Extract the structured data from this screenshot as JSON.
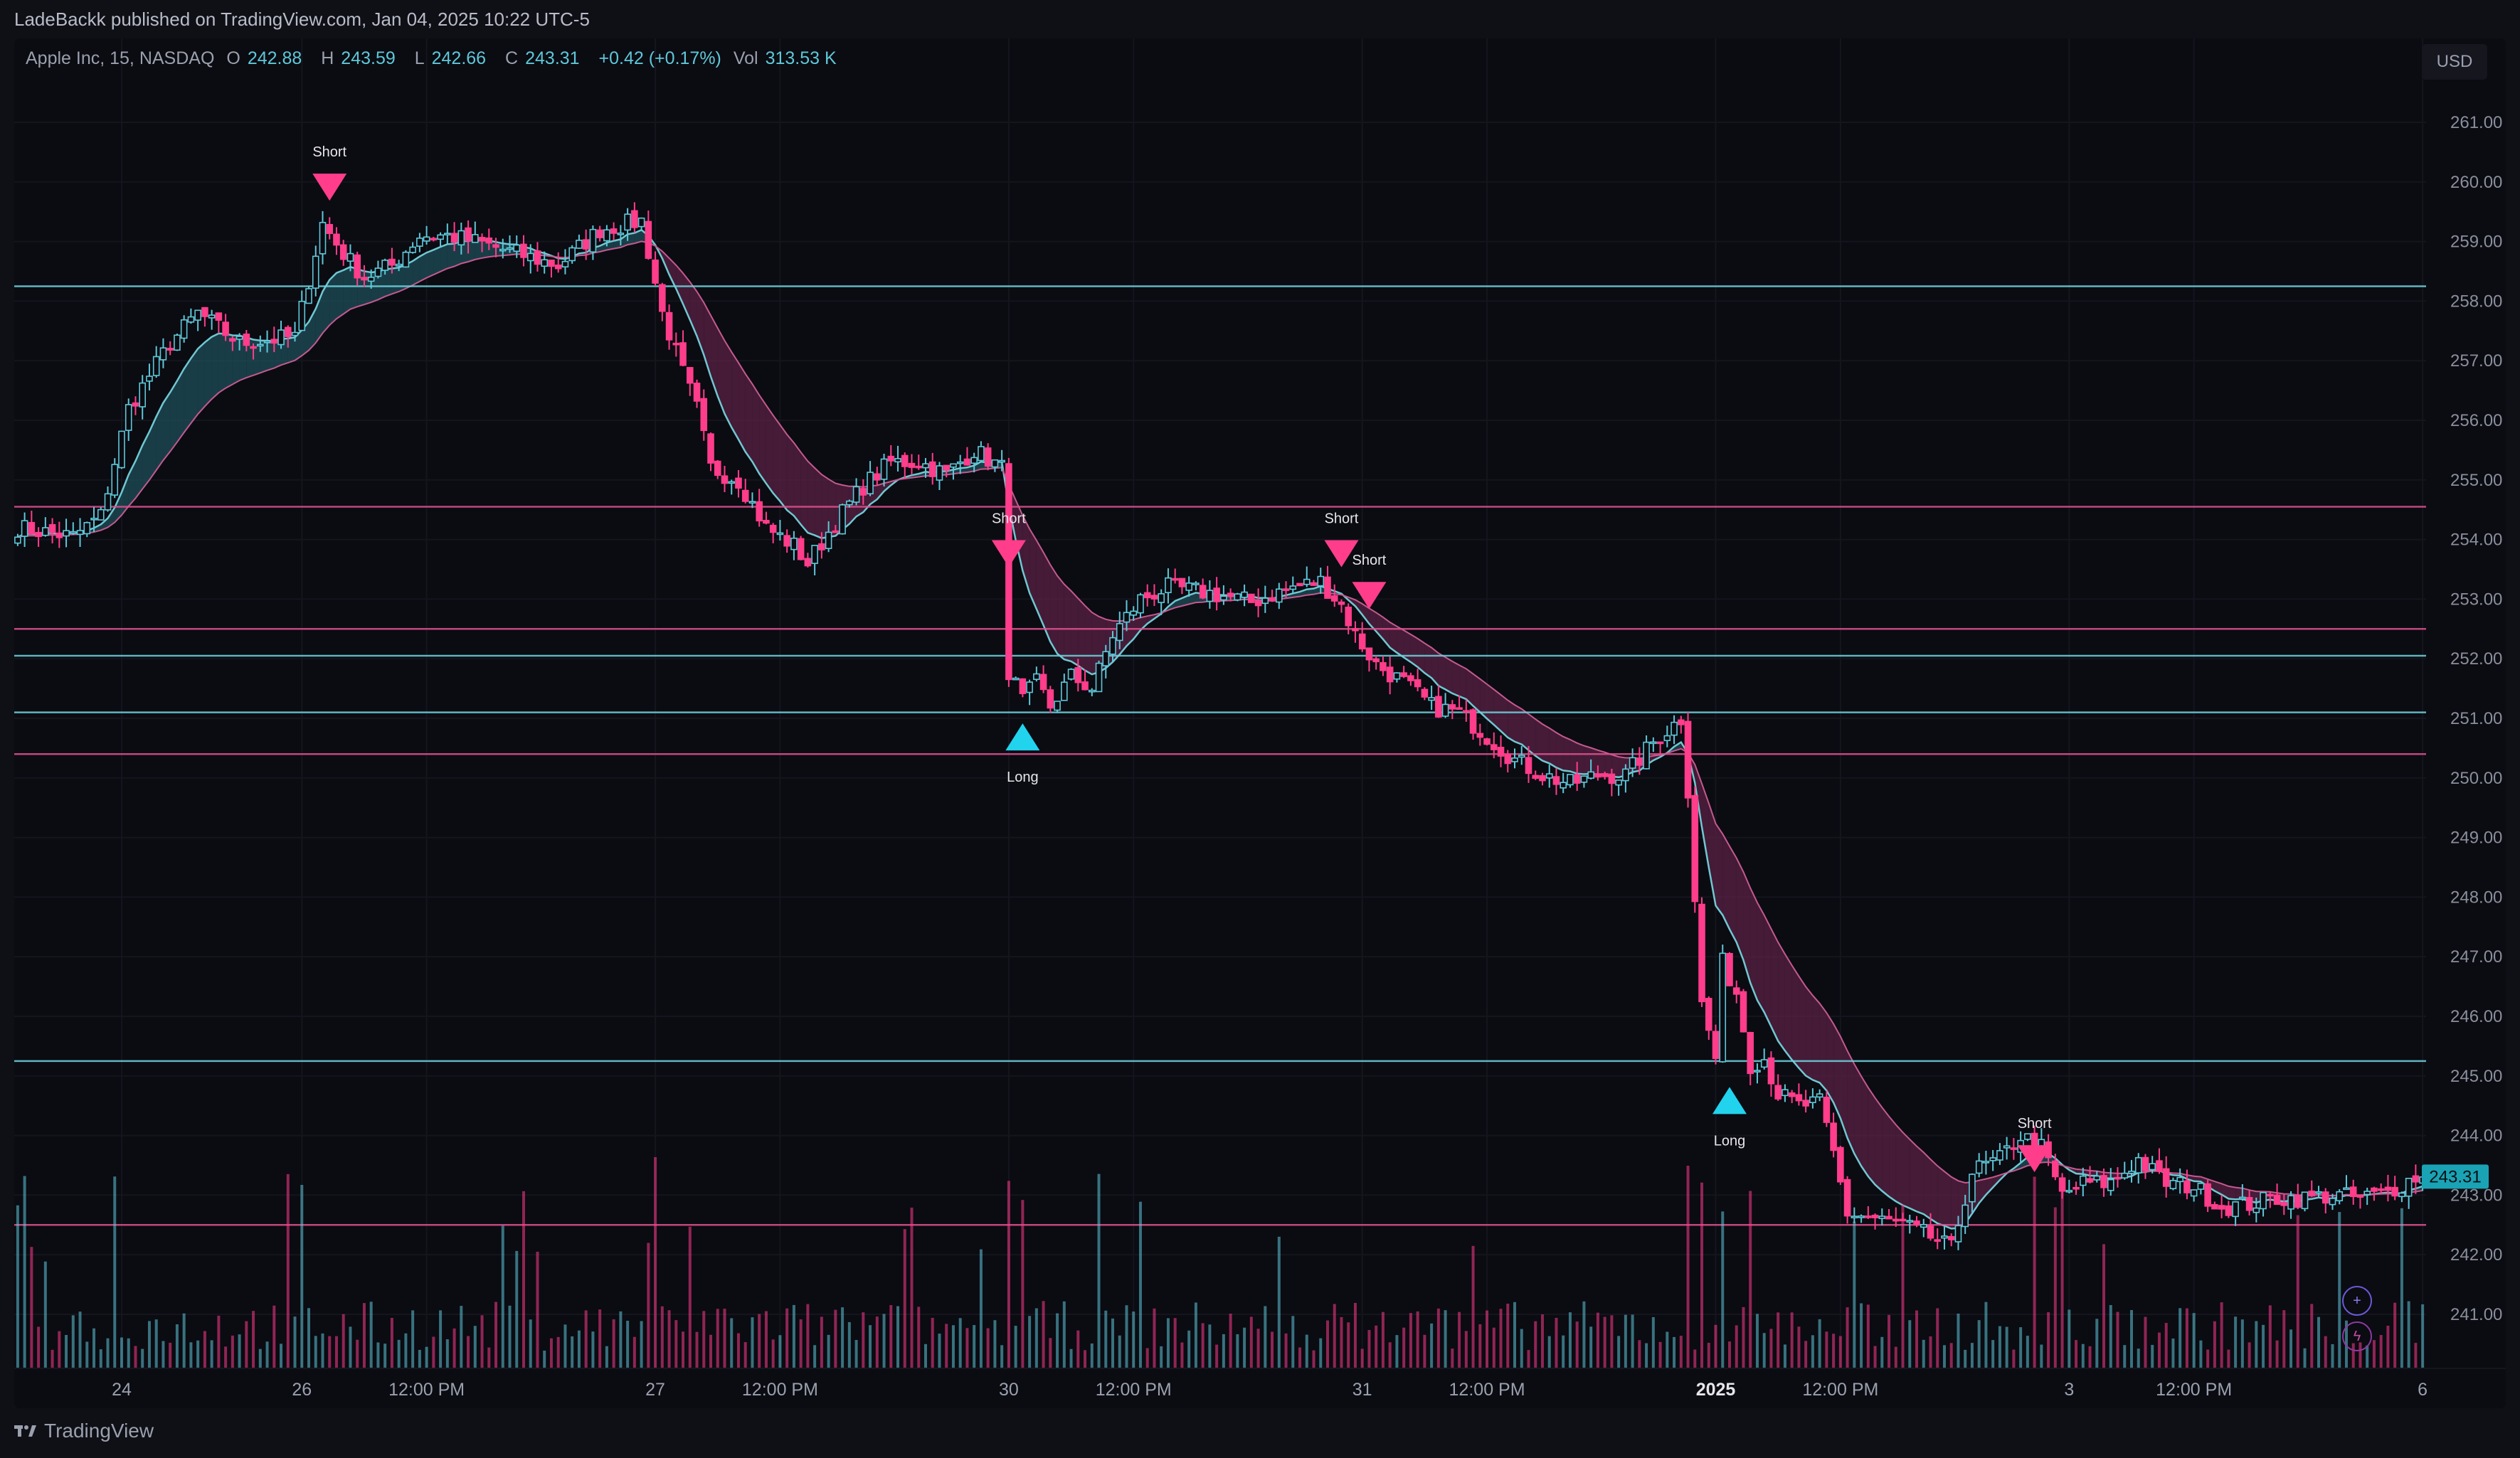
{
  "publisher_line": "LadeBackk published on TradingView.com, Jan 04, 2025 10:22 UTC-5",
  "footer": {
    "brand": "TradingView",
    "logo_icon": "tradingview-logo-icon"
  },
  "legend": {
    "symbol": "Apple Inc, 15, NASDAQ",
    "o_label": "O",
    "o": "242.88",
    "h_label": "H",
    "h": "243.59",
    "l_label": "L",
    "l": "242.66",
    "c_label": "C",
    "c": "243.31",
    "change": "+0.42 (+0.17%)",
    "vol_label": "Vol",
    "vol": "313.53 K"
  },
  "currency": "USD",
  "price_tag": "243.31",
  "buttons": {
    "add_icon": "plus-circle-icon",
    "alert_icon": "lightning-icon"
  },
  "colors": {
    "bull": "#5ec8d8",
    "bear": "#ff3d8b",
    "ma_fast": "#6fc8d2",
    "cloud_bull": "#1f4f5a",
    "cloud_bear": "#5a2244",
    "hline_cyan": "#6fd3de",
    "hline_pink": "#e0528f"
  },
  "chart_data": {
    "type": "candlestick",
    "y_ticks": [
      "261.00",
      "260.00",
      "259.00",
      "258.00",
      "257.00",
      "256.00",
      "255.00",
      "254.00",
      "253.00",
      "252.00",
      "251.00",
      "250.00",
      "249.00",
      "248.00",
      "247.00",
      "246.00",
      "245.00",
      "244.00",
      "243.00",
      "242.00",
      "241.00"
    ],
    "ylim": [
      240.3,
      261.5
    ],
    "x_ticks": [
      {
        "label": "24",
        "bar": 15,
        "bold": false
      },
      {
        "label": "26",
        "bar": 41,
        "bold": false
      },
      {
        "label": "12:00 PM",
        "bar": 59,
        "bold": false
      },
      {
        "label": "27",
        "bar": 92,
        "bold": false
      },
      {
        "label": "12:00 PM",
        "bar": 110,
        "bold": false
      },
      {
        "label": "30",
        "bar": 143,
        "bold": false
      },
      {
        "label": "12:00 PM",
        "bar": 161,
        "bold": false
      },
      {
        "label": "31",
        "bar": 194,
        "bold": false
      },
      {
        "label": "12:00 PM",
        "bar": 212,
        "bold": false
      },
      {
        "label": "2025",
        "bar": 245,
        "bold": true
      },
      {
        "label": "12:00 PM",
        "bar": 263,
        "bold": false
      },
      {
        "label": "3",
        "bar": 296,
        "bold": false
      },
      {
        "label": "12:00 PM",
        "bar": 314,
        "bold": false
      },
      {
        "label": "6",
        "bar": 347,
        "bold": false
      }
    ],
    "horizontal_levels": [
      {
        "price": 258.25,
        "color": "cyan"
      },
      {
        "price": 254.55,
        "color": "pink"
      },
      {
        "price": 252.5,
        "color": "pink"
      },
      {
        "price": 252.05,
        "color": "cyan"
      },
      {
        "price": 251.1,
        "color": "cyan"
      },
      {
        "price": 250.4,
        "color": "pink"
      },
      {
        "price": 245.25,
        "color": "cyan"
      },
      {
        "price": 242.5,
        "color": "pink"
      }
    ],
    "signals": [
      {
        "type": "Short",
        "bar": 45,
        "price": 259.9
      },
      {
        "type": "Short",
        "bar": 143,
        "price": 253.75
      },
      {
        "type": "Long",
        "bar": 145,
        "price": 250.7
      },
      {
        "type": "Short",
        "bar": 191,
        "price": 253.75
      },
      {
        "type": "Short",
        "bar": 195,
        "price": 253.05
      },
      {
        "type": "Long",
        "bar": 247,
        "price": 244.6
      },
      {
        "type": "Short",
        "bar": 291,
        "price": 243.6
      }
    ],
    "anchors": [
      [
        0,
        254.2
      ],
      [
        8,
        254.05
      ],
      [
        12,
        254.4
      ],
      [
        16,
        256.2
      ],
      [
        22,
        257.3
      ],
      [
        26,
        257.8
      ],
      [
        32,
        257.3
      ],
      [
        40,
        257.4
      ],
      [
        44,
        259.3
      ],
      [
        47,
        258.8
      ],
      [
        50,
        258.4
      ],
      [
        54,
        258.6
      ],
      [
        58,
        259.1
      ],
      [
        62,
        259.1
      ],
      [
        66,
        259.0
      ],
      [
        72,
        258.8
      ],
      [
        78,
        258.6
      ],
      [
        84,
        259.2
      ],
      [
        90,
        259.35
      ],
      [
        93,
        257.8
      ],
      [
        96,
        256.8
      ],
      [
        98,
        256.2
      ],
      [
        100,
        255.2
      ],
      [
        104,
        255.0
      ],
      [
        108,
        254.2
      ],
      [
        112,
        253.9
      ],
      [
        114,
        253.6
      ],
      [
        118,
        254.3
      ],
      [
        122,
        254.9
      ],
      [
        126,
        255.3
      ],
      [
        130,
        255.3
      ],
      [
        134,
        255.1
      ],
      [
        138,
        255.5
      ],
      [
        142,
        255.2
      ],
      [
        143,
        251.8
      ],
      [
        145,
        251.3
      ],
      [
        147,
        251.6
      ],
      [
        149,
        251.2
      ],
      [
        152,
        251.7
      ],
      [
        155,
        251.5
      ],
      [
        158,
        252.4
      ],
      [
        162,
        253.0
      ],
      [
        166,
        253.2
      ],
      [
        172,
        253.1
      ],
      [
        178,
        252.95
      ],
      [
        184,
        253.2
      ],
      [
        188,
        253.3
      ],
      [
        191,
        252.9
      ],
      [
        193,
        252.4
      ],
      [
        196,
        251.9
      ],
      [
        200,
        251.6
      ],
      [
        204,
        251.2
      ],
      [
        208,
        251.1
      ],
      [
        212,
        250.7
      ],
      [
        216,
        250.3
      ],
      [
        220,
        250.05
      ],
      [
        224,
        249.9
      ],
      [
        228,
        250.05
      ],
      [
        232,
        250.05
      ],
      [
        236,
        250.6
      ],
      [
        240,
        251.0
      ],
      [
        241,
        249.8
      ],
      [
        242,
        248.0
      ],
      [
        243,
        246.2
      ],
      [
        245,
        245.3
      ],
      [
        246,
        246.9
      ],
      [
        248,
        246.4
      ],
      [
        250,
        245.2
      ],
      [
        252,
        245.3
      ],
      [
        254,
        244.7
      ],
      [
        257,
        244.5
      ],
      [
        260,
        244.55
      ],
      [
        262,
        243.7
      ],
      [
        264,
        242.7
      ],
      [
        268,
        242.6
      ],
      [
        272,
        242.5
      ],
      [
        276,
        242.3
      ],
      [
        279,
        242.1
      ],
      [
        282,
        243.4
      ],
      [
        286,
        243.6
      ],
      [
        289,
        244.0
      ],
      [
        292,
        243.8
      ],
      [
        295,
        243.0
      ],
      [
        298,
        243.2
      ],
      [
        302,
        243.2
      ],
      [
        306,
        243.6
      ],
      [
        310,
        243.2
      ],
      [
        314,
        243.15
      ],
      [
        318,
        242.8
      ],
      [
        322,
        242.85
      ],
      [
        326,
        242.95
      ],
      [
        330,
        242.95
      ],
      [
        334,
        243.0
      ],
      [
        338,
        242.95
      ],
      [
        342,
        243.05
      ],
      [
        346,
        243.31
      ]
    ],
    "volume_scale_note": "volume shown in lower pane"
  }
}
